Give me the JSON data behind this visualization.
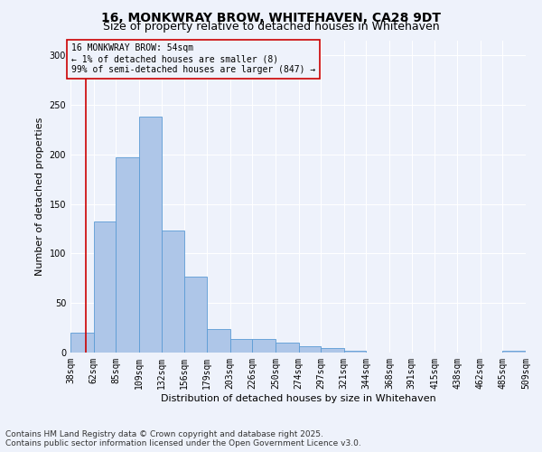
{
  "title_line1": "16, MONKWRAY BROW, WHITEHAVEN, CA28 9DT",
  "title_line2": "Size of property relative to detached houses in Whitehaven",
  "xlabel": "Distribution of detached houses by size in Whitehaven",
  "ylabel": "Number of detached properties",
  "bar_color": "#aec6e8",
  "bar_edge_color": "#5b9bd5",
  "annotation_line_color": "#cc0000",
  "annotation_box_edge": "#cc0000",
  "annotation_text": "16 MONKWRAY BROW: 54sqm\n← 1% of detached houses are smaller (8)\n99% of semi-detached houses are larger (847) →",
  "vline_x": 54,
  "bins": [
    38,
    62,
    85,
    109,
    132,
    156,
    179,
    203,
    226,
    250,
    274,
    297,
    321,
    344,
    368,
    391,
    415,
    438,
    462,
    485,
    509
  ],
  "bin_labels": [
    "38sqm",
    "62sqm",
    "85sqm",
    "109sqm",
    "132sqm",
    "156sqm",
    "179sqm",
    "203sqm",
    "226sqm",
    "250sqm",
    "274sqm",
    "297sqm",
    "321sqm",
    "344sqm",
    "368sqm",
    "391sqm",
    "415sqm",
    "438sqm",
    "462sqm",
    "485sqm",
    "509sqm"
  ],
  "values": [
    20,
    132,
    197,
    238,
    123,
    77,
    24,
    14,
    14,
    10,
    6,
    5,
    2,
    0,
    0,
    0,
    0,
    0,
    0,
    2
  ],
  "ylim": [
    0,
    315
  ],
  "yticks": [
    0,
    50,
    100,
    150,
    200,
    250,
    300
  ],
  "footer": "Contains HM Land Registry data © Crown copyright and database right 2025.\nContains public sector information licensed under the Open Government Licence v3.0.",
  "bg_color": "#eef2fb",
  "grid_color": "#ffffff",
  "title_fontsize": 10,
  "subtitle_fontsize": 9,
  "axis_label_fontsize": 8,
  "tick_fontsize": 7,
  "annotation_fontsize": 7,
  "footer_fontsize": 6.5
}
